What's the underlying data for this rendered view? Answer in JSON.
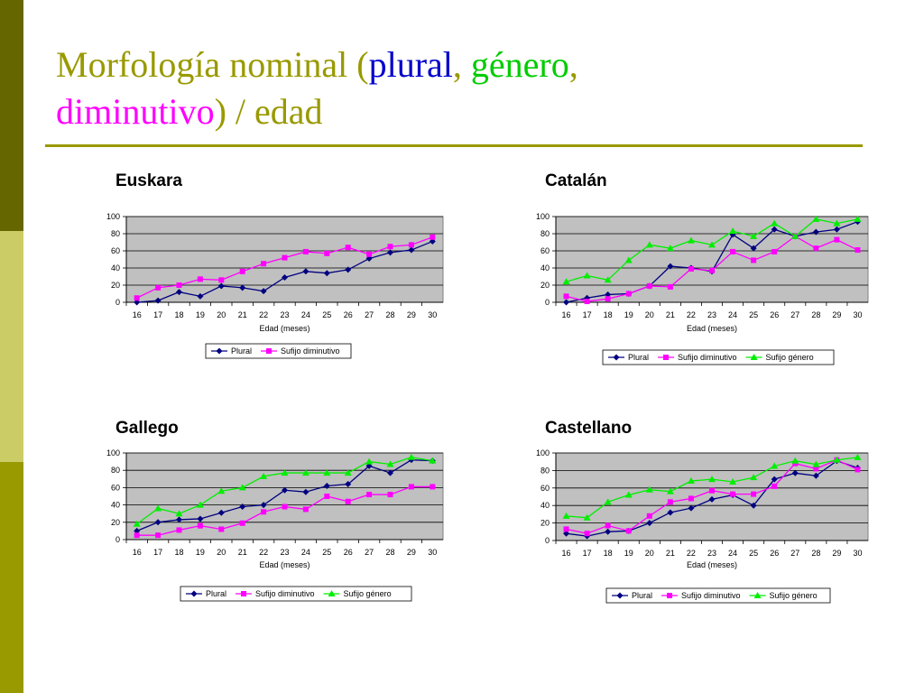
{
  "title": {
    "parts": [
      {
        "text": "Morfología nominal (",
        "color": "#999900"
      },
      {
        "text": "plural",
        "color": "#0000cc"
      },
      {
        "text": ", ",
        "color": "#999900"
      },
      {
        "text": "género",
        "color": "#00cc00"
      },
      {
        "text": ",",
        "color": "#999900"
      },
      {
        "text": "diminutivo",
        "color": "#ff00ff"
      },
      {
        "text": ") / edad",
        "color": "#999900"
      }
    ]
  },
  "colors": {
    "plural": "#000080",
    "diminutivo": "#ff00ff",
    "genero": "#00ee00",
    "plot_bg": "#c0c0c0",
    "accent": "#999900"
  },
  "chart_data": [
    {
      "type": "line",
      "title": "Euskara",
      "xlabel": "Edad (meses)",
      "ylabel": "",
      "x": [
        16,
        17,
        18,
        19,
        20,
        21,
        22,
        23,
        24,
        25,
        26,
        27,
        28,
        29,
        30
      ],
      "ylim": [
        0,
        100
      ],
      "yticks": [
        0,
        20,
        40,
        60,
        80,
        100
      ],
      "grid": true,
      "legend": "bottom",
      "series": [
        {
          "name": "Plural",
          "marker": "diamond",
          "color": "#000080",
          "values": [
            0,
            2,
            12,
            7,
            19,
            17,
            13,
            29,
            36,
            34,
            38,
            51,
            58,
            61,
            71
          ]
        },
        {
          "name": "Sufijo diminutivo",
          "marker": "square",
          "color": "#ff00ff",
          "values": [
            5,
            17,
            20,
            27,
            26,
            36,
            45,
            52,
            59,
            57,
            64,
            56,
            65,
            67,
            76
          ]
        }
      ]
    },
    {
      "type": "line",
      "title": "Catalán",
      "xlabel": "Edad (meses)",
      "ylabel": "",
      "x": [
        16,
        17,
        18,
        19,
        20,
        21,
        22,
        23,
        24,
        25,
        26,
        27,
        28,
        29,
        30
      ],
      "ylim": [
        0,
        100
      ],
      "yticks": [
        0,
        20,
        40,
        60,
        80,
        100
      ],
      "grid": true,
      "legend": "bottom",
      "series": [
        {
          "name": "Plural",
          "marker": "diamond",
          "color": "#000080",
          "values": [
            0,
            5,
            9,
            10,
            19,
            42,
            40,
            36,
            79,
            63,
            85,
            77,
            82,
            85,
            94
          ]
        },
        {
          "name": "Sufijo diminutivo",
          "marker": "square",
          "color": "#ff00ff",
          "values": [
            7,
            1,
            4,
            10,
            19,
            18,
            39,
            37,
            59,
            49,
            59,
            77,
            63,
            73,
            61
          ]
        },
        {
          "name": "Sufijo género",
          "marker": "triangle",
          "color": "#00ee00",
          "values": [
            24,
            31,
            26,
            49,
            67,
            63,
            72,
            67,
            83,
            77,
            92,
            77,
            97,
            92,
            97
          ]
        }
      ]
    },
    {
      "type": "line",
      "title": "Gallego",
      "xlabel": "Edad (meses)",
      "ylabel": "",
      "x": [
        16,
        17,
        18,
        19,
        20,
        21,
        22,
        23,
        24,
        25,
        26,
        27,
        28,
        29,
        30
      ],
      "ylim": [
        0,
        100
      ],
      "yticks": [
        0,
        20,
        40,
        60,
        80,
        100
      ],
      "grid": true,
      "legend": "bottom",
      "series": [
        {
          "name": "Plural",
          "marker": "diamond",
          "color": "#000080",
          "values": [
            10,
            20,
            23,
            24,
            31,
            38,
            40,
            57,
            55,
            62,
            64,
            85,
            77,
            92,
            91
          ]
        },
        {
          "name": "Sufijo diminutivo",
          "marker": "square",
          "color": "#ff00ff",
          "values": [
            5,
            5,
            11,
            16,
            12,
            19,
            32,
            38,
            35,
            50,
            44,
            52,
            52,
            61,
            61
          ]
        },
        {
          "name": "Sufijo género",
          "marker": "triangle",
          "color": "#00ee00",
          "values": [
            18,
            36,
            30,
            40,
            56,
            60,
            73,
            77,
            77,
            77,
            77,
            90,
            87,
            95,
            91
          ]
        }
      ]
    },
    {
      "type": "line",
      "title": "Castellano",
      "xlabel": "Edad (meses)",
      "ylabel": "",
      "x": [
        16,
        17,
        18,
        19,
        20,
        21,
        22,
        23,
        24,
        25,
        26,
        27,
        28,
        29,
        30
      ],
      "ylim": [
        0,
        100
      ],
      "yticks": [
        0,
        20,
        40,
        60,
        80,
        100
      ],
      "grid": true,
      "legend": "bottom",
      "series": [
        {
          "name": "Plural",
          "marker": "diamond",
          "color": "#000080",
          "values": [
            8,
            5,
            10,
            11,
            20,
            32,
            37,
            47,
            52,
            40,
            70,
            77,
            74,
            91,
            83
          ]
        },
        {
          "name": "Sufijo diminutivo",
          "marker": "square",
          "color": "#ff00ff",
          "values": [
            13,
            8,
            17,
            11,
            28,
            44,
            48,
            57,
            53,
            53,
            62,
            88,
            82,
            92,
            81
          ]
        },
        {
          "name": "Sufijo género",
          "marker": "triangle",
          "color": "#00ee00",
          "values": [
            28,
            26,
            44,
            52,
            58,
            56,
            68,
            70,
            67,
            72,
            85,
            91,
            87,
            92,
            95
          ]
        }
      ]
    }
  ]
}
